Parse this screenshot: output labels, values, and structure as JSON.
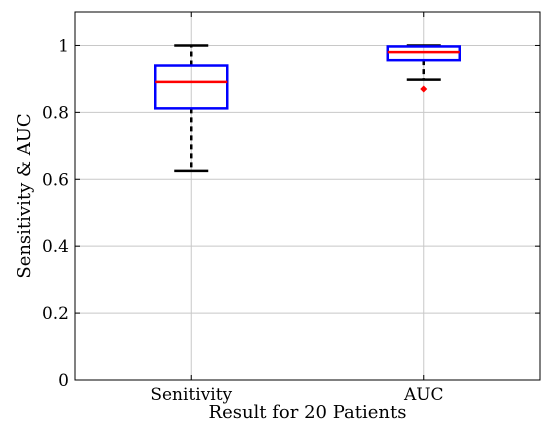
{
  "chart_data": {
    "type": "box",
    "categories": [
      "Senitivity",
      "AUC"
    ],
    "xlabel": "Result for 20 Patients",
    "ylabel": "Sensitivity & AUC",
    "ylim": [
      0,
      1.1
    ],
    "yticks": [
      0,
      0.2,
      0.4,
      0.6,
      0.8,
      1
    ],
    "ytick_labels": [
      "0",
      "0.2",
      "0.4",
      "0.6",
      "0.8",
      "1"
    ],
    "grid": true,
    "boxes": [
      {
        "category": "Senitivity",
        "whisker_low": 0.625,
        "q1": 0.812,
        "median": 0.891,
        "q3": 0.94,
        "whisker_high": 1.0,
        "outliers": []
      },
      {
        "category": "AUC",
        "whisker_low": 0.898,
        "q1": 0.956,
        "median": 0.98,
        "q3": 0.997,
        "whisker_high": 1.0,
        "outliers": [
          0.87
        ]
      }
    ],
    "colors": {
      "box": "#0000ff",
      "median": "#ff0000",
      "whisker": "#000000",
      "outlier": "#ff0000",
      "grid": "#c8c8c8"
    }
  }
}
